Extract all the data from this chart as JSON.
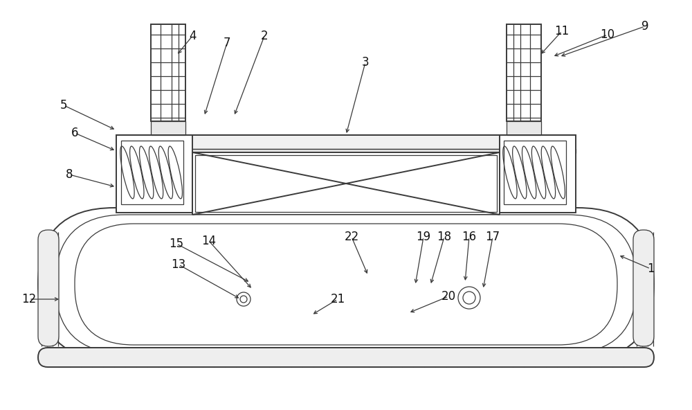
{
  "bg_color": "#ffffff",
  "lc": "#3a3a3a",
  "lw": 1.4,
  "tlw": 0.9,
  "fig_width": 10.0,
  "fig_height": 5.92,
  "arrow_data": [
    [
      "1",
      940,
      388,
      893,
      368
    ],
    [
      "2",
      382,
      52,
      338,
      168
    ],
    [
      "3",
      528,
      90,
      500,
      195
    ],
    [
      "4",
      278,
      52,
      255,
      80
    ],
    [
      "5",
      92,
      152,
      168,
      188
    ],
    [
      "6",
      108,
      192,
      168,
      218
    ],
    [
      "7",
      328,
      62,
      295,
      168
    ],
    [
      "8",
      100,
      252,
      168,
      270
    ],
    [
      "9",
      932,
      38,
      808,
      82
    ],
    [
      "10",
      878,
      50,
      798,
      82
    ],
    [
      "11",
      812,
      45,
      780,
      80
    ],
    [
      "12",
      42,
      432,
      88,
      432
    ],
    [
      "13",
      258,
      382,
      348,
      432
    ],
    [
      "14",
      302,
      348,
      365,
      418
    ],
    [
      "15",
      255,
      352,
      362,
      408
    ],
    [
      "16",
      678,
      342,
      672,
      408
    ],
    [
      "17",
      712,
      342,
      698,
      418
    ],
    [
      "18",
      642,
      342,
      622,
      412
    ],
    [
      "19",
      612,
      342,
      600,
      412
    ],
    [
      "20",
      648,
      428,
      590,
      452
    ],
    [
      "21",
      488,
      432,
      450,
      455
    ],
    [
      "22",
      508,
      342,
      532,
      398
    ]
  ]
}
